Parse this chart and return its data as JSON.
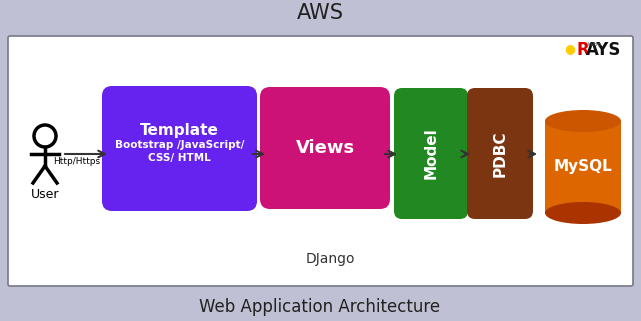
{
  "title": "AWS",
  "footer": "Web Application Architecture",
  "django_label": "DJango",
  "outer_bg": "#c0c0d4",
  "inner_bg": "#ffffff",
  "border_color": "#777788",
  "user_label": "User",
  "http_label": "Http/Https",
  "template_color": "#6622ee",
  "template_title": "Template",
  "template_sub": "Bootstrap /JavaScript/\nCSS/ HTML",
  "views_color": "#cc1177",
  "views_label": "Views",
  "model_color": "#228822",
  "model_label": "Model",
  "pdbc_color": "#7B3510",
  "pdbc_label": "PDBC",
  "mysql_top_color": "#cc5500",
  "mysql_body_color": "#dd6600",
  "mysql_dark_color": "#aa3300",
  "mysql_label": "MySQL",
  "rays_r_color": "#dd0000",
  "rays_text_color": "#111111",
  "rays_dot_color": "#ffcc00",
  "arrow_color": "#333333"
}
